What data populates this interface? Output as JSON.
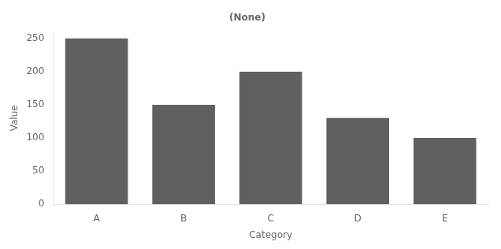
{
  "chart_data": {
    "type": "bar",
    "title": "(None)",
    "categories": [
      "A",
      "B",
      "C",
      "D",
      "E"
    ],
    "values": [
      250,
      150,
      200,
      130,
      100
    ],
    "color": "#606060",
    "x_label": "Category",
    "y_label": "Value",
    "ylim": [
      0,
      260
    ],
    "yticks": [
      0,
      50,
      100,
      150,
      200,
      250
    ],
    "grid": false
  }
}
